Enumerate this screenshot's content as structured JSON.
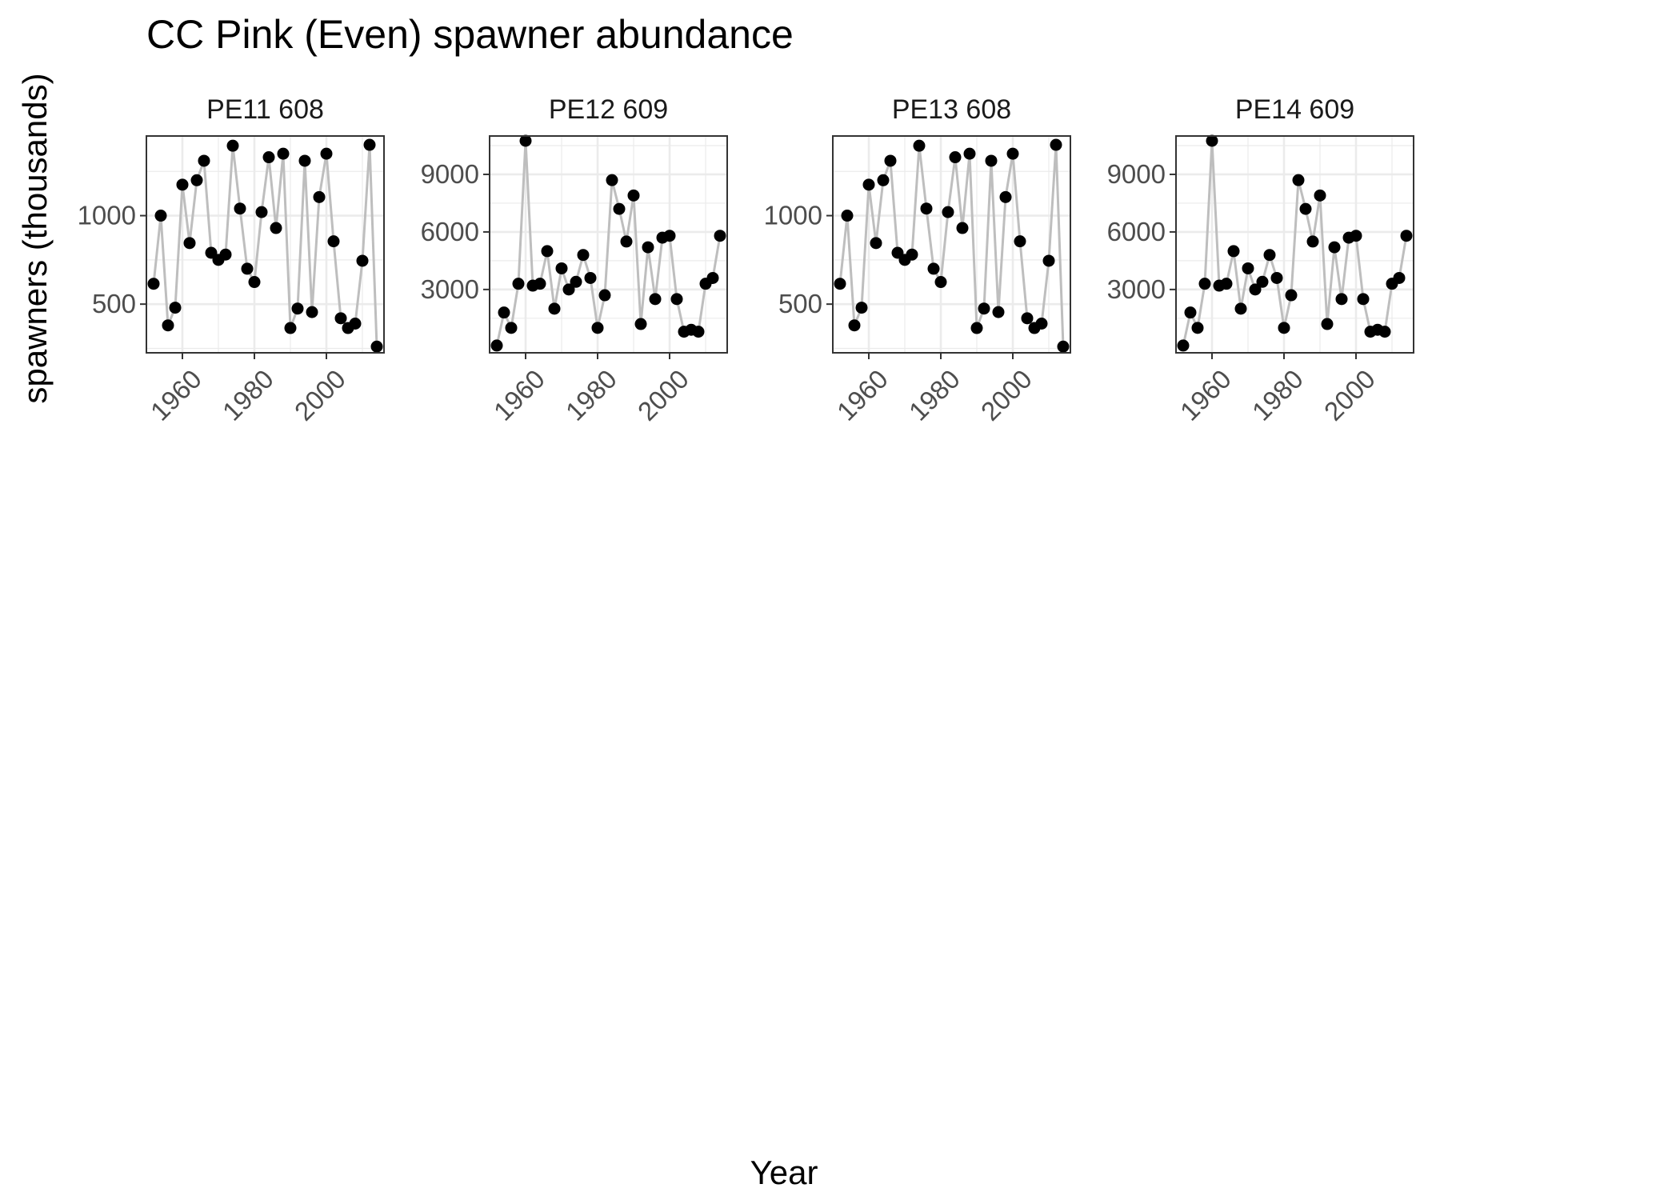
{
  "chart_data": {
    "type": "line",
    "title": "CC Pink (Even) spawner abundance",
    "xlabel": "Year",
    "ylabel": "spawners (thousands)",
    "grid": true,
    "colors": {
      "line": "#bebebe",
      "point": "#000000",
      "panel_border": "#333333",
      "grid": "#ebebeb"
    },
    "panels": [
      {
        "name": "PE11 608",
        "ylim": [
          225,
          1450
        ],
        "yticks": [
          500,
          1000
        ],
        "ytick_labels": [
          "500",
          "1000"
        ],
        "xlim": [
          1950,
          2016
        ],
        "xticks": [
          1960,
          1980,
          2000
        ],
        "xtick_labels": [
          "1960",
          "1980",
          "2000"
        ],
        "x": [
          1952,
          1954,
          1956,
          1958,
          1960,
          1962,
          1964,
          1966,
          1968,
          1970,
          1972,
          1974,
          1976,
          1978,
          1980,
          1982,
          1984,
          1986,
          1988,
          1990,
          1992,
          1994,
          1996,
          1998,
          2000,
          2002,
          2004,
          2006,
          2008,
          2010,
          2012,
          2014
        ],
        "y": [
          615,
          1000,
          380,
          480,
          1175,
          845,
          1200,
          1310,
          790,
          750,
          780,
          1395,
          1040,
          700,
          625,
          1020,
          1330,
          930,
          1350,
          365,
          475,
          1310,
          455,
          1105,
          1350,
          855,
          420,
          365,
          390,
          745,
          1400,
          260
        ]
      },
      {
        "name": "PE12 609",
        "ylim": [
          -300,
          11000
        ],
        "yticks": [
          3000,
          6000,
          9000
        ],
        "ytick_labels": [
          "3000",
          "6000",
          "9000"
        ],
        "xlim": [
          1950,
          2016
        ],
        "xticks": [
          1960,
          1980,
          2000
        ],
        "xtick_labels": [
          "1960",
          "1980",
          "2000"
        ],
        "x": [
          1952,
          1954,
          1956,
          1958,
          1960,
          1962,
          1964,
          1966,
          1968,
          1970,
          1972,
          1974,
          1976,
          1978,
          1980,
          1982,
          1984,
          1986,
          1988,
          1990,
          1992,
          1994,
          1996,
          1998,
          2000,
          2002,
          2004,
          2006,
          2008,
          2010,
          2012,
          2014
        ],
        "y": [
          80,
          1800,
          1000,
          3300,
          10750,
          3200,
          3300,
          5000,
          2000,
          4100,
          3000,
          3400,
          4800,
          3600,
          1000,
          2700,
          8700,
          7200,
          5500,
          7900,
          1200,
          5200,
          2500,
          5700,
          5800,
          2500,
          800,
          900,
          800,
          3300,
          3600,
          5800
        ]
      },
      {
        "name": "PE13 608",
        "ylim": [
          225,
          1450
        ],
        "yticks": [
          500,
          1000
        ],
        "ytick_labels": [
          "500",
          "1000"
        ],
        "xlim": [
          1950,
          2016
        ],
        "xticks": [
          1960,
          1980,
          2000
        ],
        "xtick_labels": [
          "1960",
          "1980",
          "2000"
        ],
        "x": [
          1952,
          1954,
          1956,
          1958,
          1960,
          1962,
          1964,
          1966,
          1968,
          1970,
          1972,
          1974,
          1976,
          1978,
          1980,
          1982,
          1984,
          1986,
          1988,
          1990,
          1992,
          1994,
          1996,
          1998,
          2000,
          2002,
          2004,
          2006,
          2008,
          2010,
          2012,
          2014
        ],
        "y": [
          615,
          1000,
          380,
          480,
          1175,
          845,
          1200,
          1310,
          790,
          750,
          780,
          1395,
          1040,
          700,
          625,
          1020,
          1330,
          930,
          1350,
          365,
          475,
          1310,
          455,
          1105,
          1350,
          855,
          420,
          365,
          390,
          745,
          1400,
          260
        ]
      },
      {
        "name": "PE14 609",
        "ylim": [
          -300,
          11000
        ],
        "yticks": [
          3000,
          6000,
          9000
        ],
        "ytick_labels": [
          "3000",
          "6000",
          "9000"
        ],
        "xlim": [
          1950,
          2016
        ],
        "xticks": [
          1960,
          1980,
          2000
        ],
        "xtick_labels": [
          "1960",
          "1980",
          "2000"
        ],
        "x": [
          1952,
          1954,
          1956,
          1958,
          1960,
          1962,
          1964,
          1966,
          1968,
          1970,
          1972,
          1974,
          1976,
          1978,
          1980,
          1982,
          1984,
          1986,
          1988,
          1990,
          1992,
          1994,
          1996,
          1998,
          2000,
          2002,
          2004,
          2006,
          2008,
          2010,
          2012,
          2014
        ],
        "y": [
          80,
          1800,
          1000,
          3300,
          10750,
          3200,
          3300,
          5000,
          2000,
          4100,
          3000,
          3400,
          4800,
          3600,
          1000,
          2700,
          8700,
          7200,
          5500,
          7900,
          1200,
          5200,
          2500,
          5700,
          5800,
          2500,
          800,
          900,
          800,
          3300,
          3600,
          5800
        ]
      }
    ]
  }
}
